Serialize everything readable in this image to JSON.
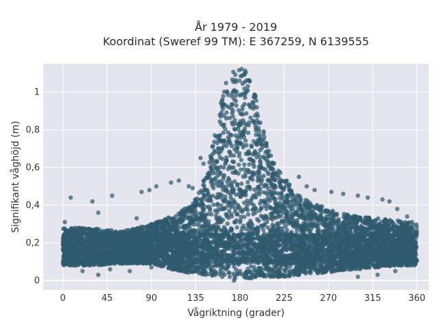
{
  "chart_data": {
    "type": "scatter",
    "title_lines": [
      "År 1979 - 2019",
      "Koordinat (Sweref 99 TM): E 367259, N 6139555"
    ],
    "xlabel": "Vågriktning (grader)",
    "ylabel": "Signifikant våghöjd (m)",
    "xlim": [
      -20,
      372
    ],
    "ylim": [
      -0.05,
      1.15
    ],
    "x_ticks": [
      0,
      45,
      90,
      135,
      180,
      225,
      270,
      315,
      360
    ],
    "x_tick_labels": [
      "0",
      "45",
      "90",
      "135",
      "180",
      "225",
      "270",
      "315",
      "360"
    ],
    "y_ticks": [
      0,
      0.2,
      0.4,
      0.6,
      0.8,
      1
    ],
    "y_tick_labels": [
      "0",
      "0,2",
      "0,4",
      "0,6",
      "0,8",
      "1"
    ],
    "grid": true,
    "legend": "none",
    "marker_color": "#2f5a6e",
    "plot_background": "#e5e5ee",
    "envelope": {
      "direction": [
        0,
        30,
        60,
        90,
        110,
        130,
        145,
        155,
        165,
        175,
        180,
        185,
        195,
        205,
        215,
        225,
        240,
        260,
        280,
        300,
        320,
        340,
        360
      ],
      "min_height": [
        0.08,
        0.08,
        0.09,
        0.09,
        0.06,
        0.04,
        0.03,
        0.02,
        0.01,
        0.01,
        0.01,
        0.01,
        0.01,
        0.02,
        0.02,
        0.02,
        0.03,
        0.04,
        0.05,
        0.06,
        0.07,
        0.08,
        0.08
      ],
      "max_height": [
        0.28,
        0.28,
        0.26,
        0.3,
        0.34,
        0.4,
        0.55,
        0.8,
        1.05,
        1.12,
        1.13,
        1.12,
        1.0,
        0.78,
        0.62,
        0.55,
        0.45,
        0.4,
        0.36,
        0.34,
        0.33,
        0.32,
        0.3
      ]
    },
    "outliers": [
      {
        "x": 8,
        "y": 0.44
      },
      {
        "x": 30,
        "y": 0.42
      },
      {
        "x": 36,
        "y": 0.36
      },
      {
        "x": 50,
        "y": 0.45
      },
      {
        "x": 75,
        "y": 0.33
      },
      {
        "x": 80,
        "y": 0.47
      },
      {
        "x": 88,
        "y": 0.48
      },
      {
        "x": 95,
        "y": 0.5
      },
      {
        "x": 110,
        "y": 0.52
      },
      {
        "x": 118,
        "y": 0.53
      },
      {
        "x": 128,
        "y": 0.5
      },
      {
        "x": 132,
        "y": 0.49
      },
      {
        "x": 140,
        "y": 0.65
      },
      {
        "x": 143,
        "y": 0.62
      },
      {
        "x": 2,
        "y": 0.31
      },
      {
        "x": 20,
        "y": 0.05
      },
      {
        "x": 36,
        "y": 0.03
      },
      {
        "x": 48,
        "y": 0.06
      },
      {
        "x": 68,
        "y": 0.05
      },
      {
        "x": 90,
        "y": 0.07
      },
      {
        "x": 240,
        "y": 0.55
      },
      {
        "x": 248,
        "y": 0.5
      },
      {
        "x": 256,
        "y": 0.48
      },
      {
        "x": 273,
        "y": 0.47
      },
      {
        "x": 285,
        "y": 0.46
      },
      {
        "x": 300,
        "y": 0.45
      },
      {
        "x": 310,
        "y": 0.44
      },
      {
        "x": 325,
        "y": 0.43
      },
      {
        "x": 332,
        "y": 0.42
      },
      {
        "x": 340,
        "y": 0.38
      },
      {
        "x": 350,
        "y": 0.34
      },
      {
        "x": 355,
        "y": 0.31
      },
      {
        "x": 300,
        "y": 0.02
      },
      {
        "x": 320,
        "y": 0.03
      },
      {
        "x": 338,
        "y": 0.05
      },
      {
        "x": 174,
        "y": 0.0
      },
      {
        "x": 162,
        "y": 0.02
      }
    ]
  }
}
